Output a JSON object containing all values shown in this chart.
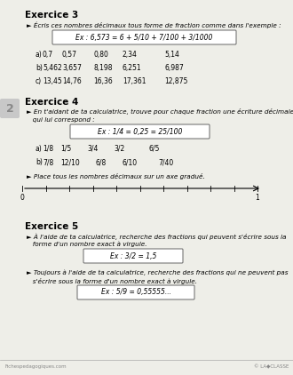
{
  "page_bg": "#eeeee8",
  "ex3_title": "Exercice 3",
  "ex3_instr": "► Écris ces nombres décimaux tous forme de fraction comme dans l'exemple :",
  "ex3_example": "Ex : 6,573 = 6 + 5/10 + 7/100 + 3/1000",
  "ex3_a_label": "a)",
  "ex3_a_vals": [
    "0,7",
    "0,57",
    "0,80",
    "2,34",
    "5,14"
  ],
  "ex3_b_label": "b)",
  "ex3_b_vals": [
    "5,462",
    "3,657",
    "8,198",
    "6,251",
    "6,987"
  ],
  "ex3_c_label": "c)",
  "ex3_c_vals": [
    "13,45",
    "14,76",
    "16,36",
    "17,361",
    "12,875"
  ],
  "ex4_title": "Exercice 4",
  "ex4_instr1": "► En t'aidant de ta calculatrice, trouve pour chaque fraction une écriture décimale",
  "ex4_instr2": "   qui lui correspond :",
  "ex4_example": "Ex : 1/4 = 0,25 = 25/100",
  "ex4_a_label": "a)",
  "ex4_a_vals": [
    "1/8",
    "1/5",
    "3/4",
    "3/2",
    "6/5"
  ],
  "ex4_b_label": "b)",
  "ex4_b_vals": [
    "7/8",
    "12/10",
    "6/8",
    "6/10",
    "7/40"
  ],
  "ex4_number": "2",
  "ex4_axis_instr": "► Place tous les nombres décimaux sur un axe gradué.",
  "ex5_title": "Exercice 5",
  "ex5_instr1a": "► À l'aide de ta calculatrice, recherche des fractions qui peuvent s'écrire sous la",
  "ex5_instr1b": "   forme d'un nombre exact à virgule.",
  "ex5_example1": "Ex : 3/2 = 1,5",
  "ex5_instr2a": "► Toujours à l'aide de ta calculatrice, recherche des fractions qui ne peuvent pas",
  "ex5_instr2b": "   s'écrire sous la forme d'un nombre exact à virgule.",
  "ex5_example2": "Ex : 5/9 = 0,55555...",
  "footer_left": "Fichespedagogiques.com",
  "footer_right": "© LA◆CLASSE"
}
